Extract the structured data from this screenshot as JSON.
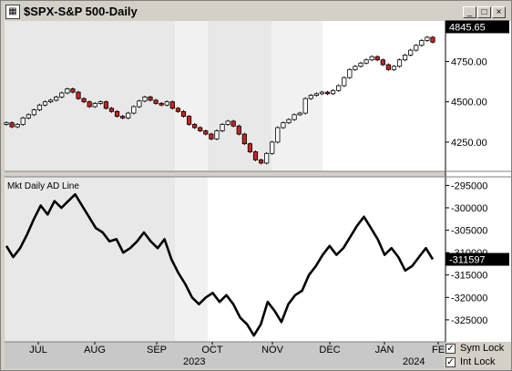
{
  "window": {
    "title": "$SPX-S&P 500-Daily",
    "controls": [
      "_",
      "□",
      "×"
    ]
  },
  "chart_data": [
    {
      "type": "candlestick",
      "title": "$SPX-S&P 500-Daily",
      "yticks": [
        4750,
        4500,
        4250
      ],
      "ylim": [
        4080,
        4990
      ],
      "last_value": "4845.65",
      "up_color": "#ffffff",
      "down_color": "#cc2222",
      "close_path": [
        4370,
        4345,
        4360,
        4400,
        4420,
        4450,
        4480,
        4500,
        4510,
        4530,
        4555,
        4580,
        4560,
        4520,
        4500,
        4470,
        4490,
        4500,
        4460,
        4440,
        4410,
        4400,
        4430,
        4470,
        4505,
        4530,
        4510,
        4490,
        4480,
        4500,
        4460,
        4440,
        4410,
        4360,
        4340,
        4320,
        4300,
        4270,
        4320,
        4360,
        4380,
        4350,
        4300,
        4240,
        4190,
        4140,
        4120,
        4180,
        4250,
        4340,
        4370,
        4390,
        4420,
        4430,
        4520,
        4540,
        4550,
        4560,
        4550,
        4570,
        4600,
        4650,
        4700,
        4720,
        4740,
        4760,
        4780,
        4760,
        4730,
        4700,
        4720,
        4760,
        4790,
        4820,
        4850,
        4880,
        4900,
        4870
      ]
    },
    {
      "type": "line",
      "title": "Mkt Daily AD Line",
      "yticks": [
        -295000,
        -300000,
        -305000,
        -310000,
        -315000,
        -320000,
        -325000
      ],
      "ylim": [
        -329500,
        -293500
      ],
      "last_value": "-311597",
      "series": [
        {
          "values": [
            -308500,
            -311000,
            -309000,
            -306000,
            -302500,
            -299500,
            -301500,
            -298500,
            -300000,
            -298500,
            -297000,
            -299500,
            -302000,
            -304500,
            -305500,
            -307500,
            -307000,
            -310000,
            -309000,
            -307500,
            -305500,
            -307500,
            -309000,
            -307000,
            -311500,
            -314500,
            -317000,
            -320000,
            -321500,
            -320000,
            -319000,
            -321000,
            -319500,
            -321500,
            -324500,
            -326000,
            -328500,
            -326000,
            -321000,
            -323000,
            -325500,
            -321500,
            -319500,
            -318500,
            -315000,
            -313000,
            -310500,
            -308500,
            -310500,
            -309000,
            -306500,
            -304000,
            -302000,
            -304500,
            -307000,
            -310500,
            -309000,
            -311000,
            -314000,
            -313000,
            -311000,
            -309000,
            -311500
          ]
        }
      ]
    }
  ],
  "xaxis": {
    "months": [
      "JUL",
      "AUG",
      "SEP",
      "OCT",
      "NOV",
      "DEC",
      "JAN",
      "FE"
    ],
    "years": [
      "2023",
      "2024"
    ]
  },
  "locks": {
    "sym_lock": "Sym Lock",
    "int_lock": "Int Lock"
  }
}
